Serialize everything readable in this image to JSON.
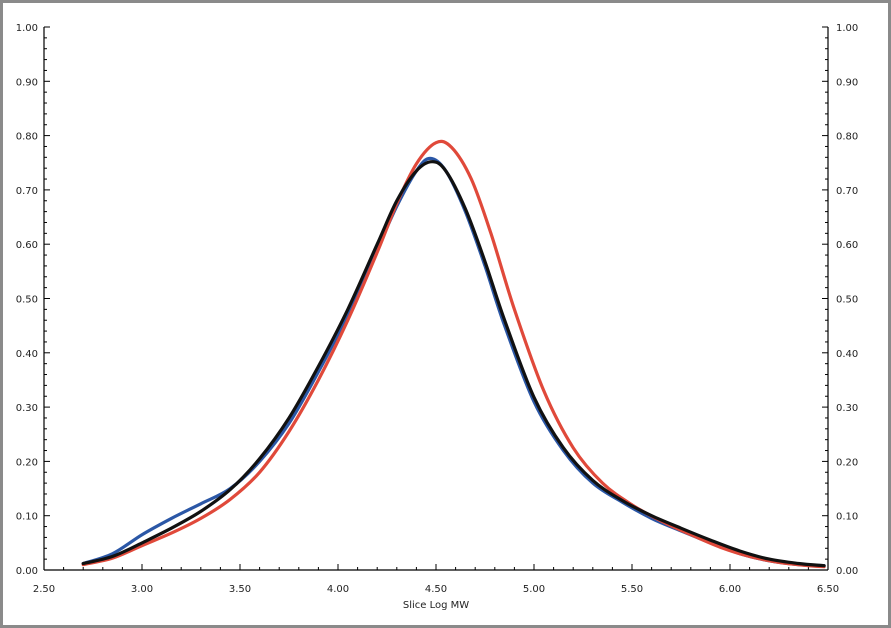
{
  "chart_data": {
    "type": "line",
    "title": "",
    "xlabel": "Slice Log MW",
    "ylabel": "",
    "xlim": [
      2.5,
      6.5
    ],
    "ylim": [
      0.0,
      1.0
    ],
    "grid": false,
    "legend": "none",
    "x_ticks": [
      "2.50",
      "3.00",
      "3.50",
      "4.00",
      "4.50",
      "5.00",
      "5.50",
      "6.00",
      "6.50"
    ],
    "y_ticks": [
      "0.00",
      "0.10",
      "0.20",
      "0.30",
      "0.40",
      "0.50",
      "0.60",
      "0.70",
      "0.80",
      "0.90",
      "1.00"
    ],
    "series": [
      {
        "color": "#2b57a6",
        "points": [
          [
            2.7,
            0.012
          ],
          [
            2.85,
            0.03
          ],
          [
            3.0,
            0.065
          ],
          [
            3.15,
            0.095
          ],
          [
            3.3,
            0.122
          ],
          [
            3.45,
            0.15
          ],
          [
            3.6,
            0.2
          ],
          [
            3.75,
            0.27
          ],
          [
            3.9,
            0.365
          ],
          [
            4.05,
            0.47
          ],
          [
            4.2,
            0.59
          ],
          [
            4.3,
            0.67
          ],
          [
            4.4,
            0.735
          ],
          [
            4.47,
            0.758
          ],
          [
            4.55,
            0.735
          ],
          [
            4.65,
            0.66
          ],
          [
            4.75,
            0.56
          ],
          [
            4.85,
            0.45
          ],
          [
            5.0,
            0.31
          ],
          [
            5.15,
            0.22
          ],
          [
            5.3,
            0.16
          ],
          [
            5.45,
            0.125
          ],
          [
            5.6,
            0.095
          ],
          [
            5.75,
            0.072
          ],
          [
            5.9,
            0.05
          ],
          [
            6.05,
            0.03
          ],
          [
            6.2,
            0.017
          ],
          [
            6.35,
            0.01
          ],
          [
            6.48,
            0.008
          ]
        ]
      },
      {
        "color": "#e0493a",
        "points": [
          [
            2.7,
            0.01
          ],
          [
            2.85,
            0.022
          ],
          [
            3.0,
            0.045
          ],
          [
            3.15,
            0.068
          ],
          [
            3.3,
            0.095
          ],
          [
            3.45,
            0.13
          ],
          [
            3.6,
            0.18
          ],
          [
            3.75,
            0.255
          ],
          [
            3.9,
            0.35
          ],
          [
            4.05,
            0.46
          ],
          [
            4.2,
            0.585
          ],
          [
            4.3,
            0.675
          ],
          [
            4.4,
            0.748
          ],
          [
            4.5,
            0.787
          ],
          [
            4.58,
            0.778
          ],
          [
            4.68,
            0.72
          ],
          [
            4.78,
            0.62
          ],
          [
            4.9,
            0.48
          ],
          [
            5.05,
            0.33
          ],
          [
            5.2,
            0.225
          ],
          [
            5.35,
            0.16
          ],
          [
            5.5,
            0.12
          ],
          [
            5.65,
            0.09
          ],
          [
            5.8,
            0.065
          ],
          [
            5.95,
            0.042
          ],
          [
            6.1,
            0.025
          ],
          [
            6.25,
            0.014
          ],
          [
            6.4,
            0.008
          ],
          [
            6.48,
            0.006
          ]
        ]
      },
      {
        "color": "#111111",
        "points": [
          [
            2.7,
            0.012
          ],
          [
            2.85,
            0.025
          ],
          [
            3.0,
            0.05
          ],
          [
            3.15,
            0.077
          ],
          [
            3.3,
            0.108
          ],
          [
            3.45,
            0.148
          ],
          [
            3.6,
            0.205
          ],
          [
            3.75,
            0.28
          ],
          [
            3.9,
            0.375
          ],
          [
            4.05,
            0.48
          ],
          [
            4.2,
            0.6
          ],
          [
            4.3,
            0.68
          ],
          [
            4.4,
            0.735
          ],
          [
            4.48,
            0.752
          ],
          [
            4.55,
            0.735
          ],
          [
            4.65,
            0.665
          ],
          [
            4.75,
            0.568
          ],
          [
            4.85,
            0.46
          ],
          [
            5.0,
            0.318
          ],
          [
            5.15,
            0.225
          ],
          [
            5.3,
            0.165
          ],
          [
            5.45,
            0.128
          ],
          [
            5.6,
            0.1
          ],
          [
            5.75,
            0.077
          ],
          [
            5.9,
            0.055
          ],
          [
            6.05,
            0.035
          ],
          [
            6.2,
            0.02
          ],
          [
            6.35,
            0.012
          ],
          [
            6.48,
            0.008
          ]
        ]
      }
    ]
  }
}
